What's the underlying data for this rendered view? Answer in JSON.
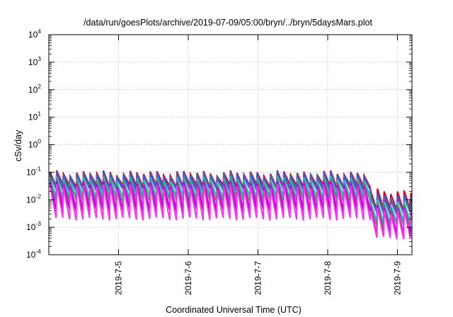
{
  "chart_data": {
    "type": "line",
    "title": "/data/run/goesPlots/archive/2019-07-09/05:00/bryn/../bryn/5daysMars.plot",
    "xlabel": "Coordinated Universal Time (UTC)",
    "ylabel": "cSv/day",
    "y_scale": "log",
    "ylim": [
      0.0001,
      10000
    ],
    "y_ticks": [
      {
        "base": "10",
        "exp": "-4",
        "value": 0.0001
      },
      {
        "base": "10",
        "exp": "-3",
        "value": 0.001
      },
      {
        "base": "10",
        "exp": "-2",
        "value": 0.01
      },
      {
        "base": "10",
        "exp": "-1",
        "value": 0.1
      },
      {
        "base": "10",
        "exp": "0",
        "value": 1
      },
      {
        "base": "10",
        "exp": "1",
        "value": 10
      },
      {
        "base": "10",
        "exp": "2",
        "value": 100
      },
      {
        "base": "10",
        "exp": "3",
        "value": 1000
      },
      {
        "base": "10",
        "exp": "4",
        "value": 10000
      }
    ],
    "xlim": [
      "2019-07-04T00:00",
      "2019-07-09T05:00"
    ],
    "x_ticks": [
      "2019-7-5",
      "2019-7-6",
      "2019-7-7",
      "2019-7-8",
      "2019-7-9"
    ],
    "x_tick_dates": [
      "2019-07-05",
      "2019-07-06",
      "2019-07-07",
      "2019-07-08",
      "2019-07-09"
    ],
    "grid": true,
    "legend": "none",
    "pattern": {
      "kind": "sawtooth",
      "pulse_spacing_hours": 2.3,
      "pulse_start_hours": 0.4,
      "low_level_start": "2019-07-08T14:00"
    },
    "series": [
      {
        "color": "#e0001c",
        "peak": 0.095,
        "trough": 0.032,
        "late_peak": 0.02,
        "late_trough": 0.0045
      },
      {
        "color": "#1a6fd6",
        "peak": 0.085,
        "trough": 0.026,
        "late_peak": 0.014,
        "late_trough": 0.0035
      },
      {
        "color": "#6a4fc2",
        "peak": 0.075,
        "trough": 0.022,
        "late_peak": 0.012,
        "late_trough": 0.003
      },
      {
        "color": "#1cc7c7",
        "peak": 0.058,
        "trough": 0.013,
        "late_peak": 0.008,
        "late_trough": 0.0015
      },
      {
        "color": "#2ea05a",
        "peak": 0.048,
        "trough": 0.009,
        "late_peak": 0.0065,
        "late_trough": 0.0011
      },
      {
        "color": "#ff00ff",
        "peak": 0.04,
        "trough": 0.005,
        "late_peak": 0.005,
        "late_trough": 0.0006
      },
      {
        "color": "#b000d8",
        "peak": 0.036,
        "trough": 0.004,
        "late_peak": 0.0045,
        "late_trough": 0.0005
      },
      {
        "color": "#ff33ee",
        "peak": 0.03,
        "trough": 0.002,
        "late_peak": 0.004,
        "late_trough": 0.0004
      }
    ]
  }
}
